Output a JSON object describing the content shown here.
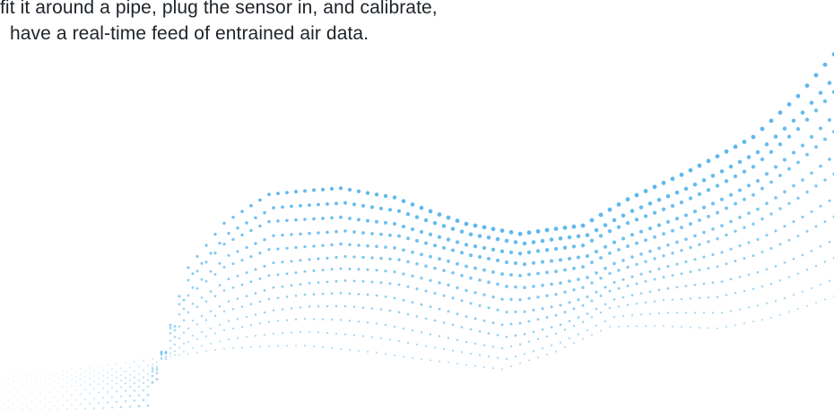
{
  "intro_text": {
    "line_1": "fit it around a pipe, plug the sensor in, and calibrate,",
    "line_2": "have a real-time feed of entrained air data."
  },
  "graphic": {
    "icon": "dotted-wave-graphic",
    "dot_color": "#5fb8ec"
  }
}
